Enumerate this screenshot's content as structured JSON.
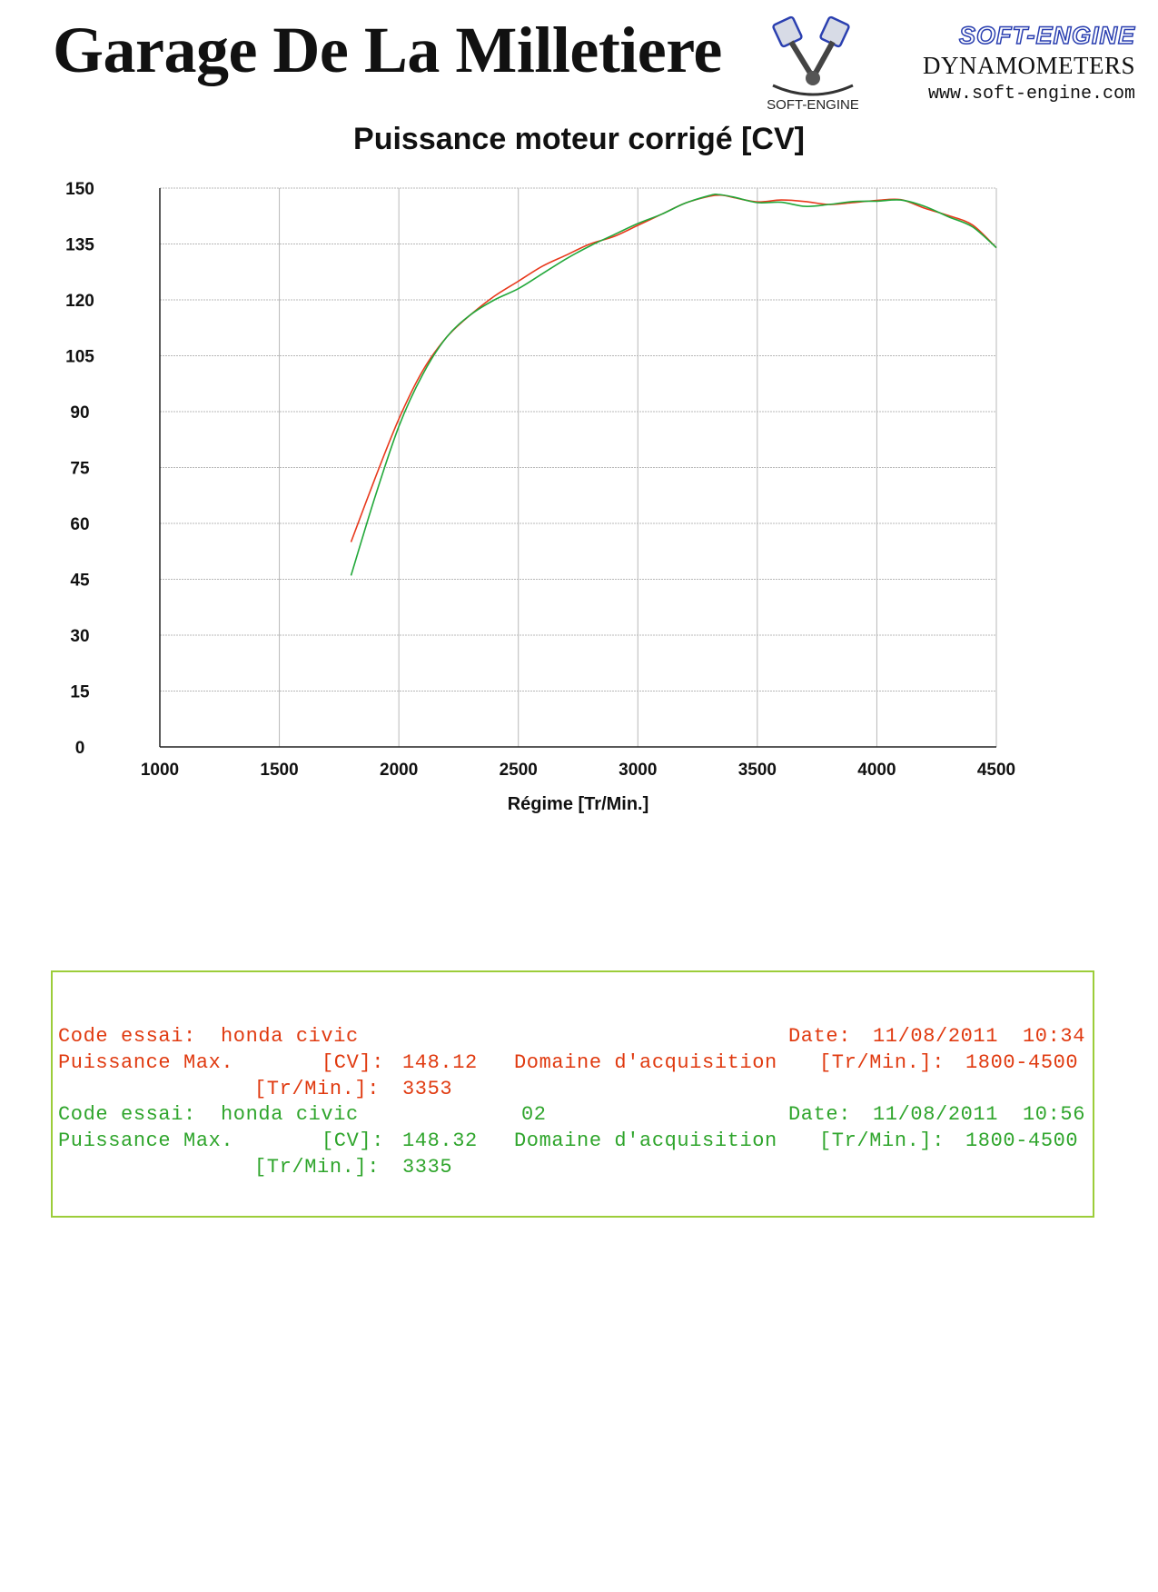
{
  "header": {
    "title": "Garage De La Milletiere",
    "brand_name": "SOFT-ENGINE",
    "brand_sub": "DYNAMOMETERS",
    "brand_url": "www.soft-engine.com",
    "logo_text": "SOFT-ENGINE"
  },
  "colors": {
    "run1": "#e8391c",
    "run2": "#22a83a",
    "grid": "#b8b8b8",
    "box_border": "#9ccd3a"
  },
  "chart_data": {
    "type": "line",
    "title": "Puissance moteur corrigé [CV]",
    "xlabel": "Régime [Tr/Min.]",
    "ylabel": "",
    "xlim": [
      1000,
      4500
    ],
    "ylim": [
      0,
      150
    ],
    "xticks": [
      "1000",
      "1500",
      "2000",
      "2500",
      "3000",
      "3500",
      "4000",
      "4500"
    ],
    "yticks": [
      "0",
      "15",
      "30",
      "45",
      "60",
      "75",
      "90",
      "105",
      "120",
      "135",
      "150"
    ],
    "grid": true,
    "series": [
      {
        "color": "#e8391c",
        "x": [
          1800,
          1900,
          2000,
          2100,
          2200,
          2300,
          2400,
          2500,
          2600,
          2700,
          2800,
          2900,
          3000,
          3100,
          3200,
          3300,
          3353,
          3400,
          3500,
          3600,
          3700,
          3800,
          3900,
          4000,
          4100,
          4200,
          4300,
          4400,
          4500
        ],
        "y": [
          55,
          72,
          88,
          101,
          110,
          116,
          121,
          125,
          129,
          132,
          135,
          137,
          140,
          143,
          146,
          147.8,
          148.1,
          147.5,
          146.3,
          146.8,
          146.4,
          145.6,
          146.1,
          146.7,
          146.9,
          144.6,
          142.6,
          140.1,
          134
        ]
      },
      {
        "color": "#22a83a",
        "x": [
          1800,
          1900,
          2000,
          2100,
          2200,
          2300,
          2400,
          2500,
          2600,
          2700,
          2800,
          2900,
          3000,
          3100,
          3200,
          3300,
          3335,
          3400,
          3500,
          3600,
          3700,
          3800,
          3900,
          4000,
          4100,
          4200,
          4300,
          4400,
          4500
        ],
        "y": [
          46,
          67,
          86,
          100,
          110,
          116,
          120,
          123,
          127,
          131,
          134.5,
          137.5,
          140.5,
          143,
          146,
          148,
          148.3,
          147.6,
          146.1,
          146.2,
          145.1,
          145.6,
          146.4,
          146.5,
          146.8,
          145.1,
          142.3,
          139.6,
          134
        ]
      }
    ]
  },
  "results": {
    "run1": {
      "code_label": "Code essai:",
      "code_value": "honda civic",
      "date_label": "Date:",
      "date_value": "11/08/2011",
      "time_value": "10:34",
      "pmax_label": "Puissance Max.",
      "cv_unit": "[CV]:",
      "cv_value": "148.12",
      "domain_label": "Domaine d'acquisition",
      "domain_unit": "[Tr/Min.]:",
      "domain_value": "1800-4500",
      "rpm_unit": "[Tr/Min.]:",
      "rpm_value": "3353"
    },
    "run2": {
      "code_label": "Code essai:",
      "code_value": "honda civic",
      "code_num": "02",
      "date_label": "Date:",
      "date_value": "11/08/2011",
      "time_value": "10:56",
      "pmax_label": "Puissance Max.",
      "cv_unit": "[CV]:",
      "cv_value": "148.32",
      "domain_label": "Domaine d'acquisition",
      "domain_unit": "[Tr/Min.]:",
      "domain_value": "1800-4500",
      "rpm_unit": "[Tr/Min.]:",
      "rpm_value": "3335"
    }
  }
}
